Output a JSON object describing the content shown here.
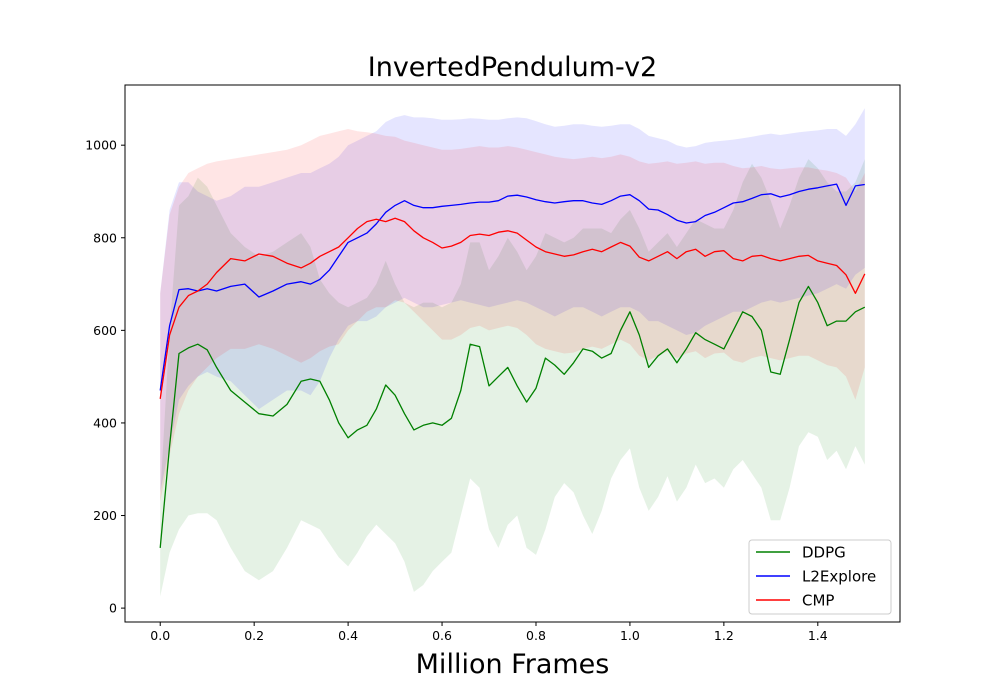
{
  "chart_data": {
    "type": "line",
    "title": "InvertedPendulum-v2",
    "xlabel": "Million Frames",
    "ylabel": "",
    "xlim": [
      -0.075,
      1.575
    ],
    "ylim": [
      -30,
      1130
    ],
    "xticks": [
      0.0,
      0.2,
      0.4,
      0.6,
      0.8,
      1.0,
      1.2,
      1.4
    ],
    "xtick_labels": [
      "0.0",
      "0.2",
      "0.4",
      "0.6",
      "0.8",
      "1.0",
      "1.2",
      "1.4"
    ],
    "yticks": [
      0,
      200,
      400,
      600,
      800,
      1000
    ],
    "ytick_labels": [
      "0",
      "200",
      "400",
      "600",
      "800",
      "1000"
    ],
    "grid": false,
    "legend_position": "bottom-right",
    "series": [
      {
        "name": "DDPG",
        "color": "#008000",
        "x": [
          0.0,
          0.02,
          0.04,
          0.06,
          0.08,
          0.1,
          0.12,
          0.15,
          0.18,
          0.21,
          0.24,
          0.27,
          0.3,
          0.32,
          0.34,
          0.36,
          0.38,
          0.4,
          0.42,
          0.44,
          0.46,
          0.48,
          0.5,
          0.52,
          0.54,
          0.56,
          0.58,
          0.6,
          0.62,
          0.64,
          0.66,
          0.68,
          0.7,
          0.72,
          0.74,
          0.76,
          0.78,
          0.8,
          0.82,
          0.84,
          0.86,
          0.88,
          0.9,
          0.92,
          0.94,
          0.96,
          0.98,
          1.0,
          1.02,
          1.04,
          1.06,
          1.08,
          1.1,
          1.12,
          1.14,
          1.16,
          1.18,
          1.2,
          1.22,
          1.24,
          1.26,
          1.28,
          1.3,
          1.32,
          1.34,
          1.36,
          1.38,
          1.4,
          1.42,
          1.44,
          1.46,
          1.48,
          1.5
        ],
        "y": [
          130,
          350,
          550,
          562,
          570,
          558,
          520,
          470,
          445,
          420,
          415,
          440,
          490,
          495,
          490,
          450,
          400,
          368,
          385,
          395,
          430,
          482,
          460,
          420,
          385,
          395,
          400,
          395,
          410,
          470,
          570,
          565,
          480,
          500,
          520,
          480,
          445,
          475,
          540,
          525,
          505,
          530,
          560,
          555,
          540,
          550,
          600,
          640,
          590,
          520,
          545,
          560,
          530,
          560,
          595,
          580,
          570,
          560,
          600,
          640,
          630,
          600,
          510,
          505,
          580,
          660,
          695,
          660,
          610,
          620,
          620,
          640,
          650
        ],
        "lower": [
          25,
          120,
          170,
          200,
          205,
          205,
          190,
          130,
          80,
          60,
          80,
          130,
          190,
          180,
          170,
          140,
          110,
          90,
          120,
          155,
          180,
          160,
          140,
          100,
          35,
          50,
          80,
          100,
          120,
          200,
          280,
          260,
          170,
          130,
          180,
          200,
          130,
          115,
          170,
          240,
          270,
          250,
          200,
          160,
          210,
          280,
          320,
          345,
          260,
          210,
          240,
          285,
          230,
          260,
          310,
          270,
          280,
          260,
          300,
          320,
          290,
          260,
          190,
          190,
          260,
          350,
          380,
          370,
          320,
          340,
          300,
          350,
          310
        ],
        "upper": [
          240,
          600,
          870,
          890,
          930,
          910,
          870,
          810,
          780,
          760,
          770,
          790,
          810,
          780,
          710,
          680,
          660,
          650,
          660,
          670,
          700,
          750,
          700,
          660,
          650,
          660,
          660,
          650,
          660,
          700,
          790,
          790,
          730,
          760,
          800,
          770,
          730,
          760,
          810,
          800,
          790,
          800,
          820,
          820,
          820,
          810,
          840,
          860,
          820,
          770,
          790,
          810,
          780,
          810,
          840,
          830,
          820,
          820,
          860,
          920,
          960,
          930,
          880,
          820,
          870,
          930,
          970,
          950,
          920,
          900,
          900,
          920,
          970
        ]
      },
      {
        "name": "L2Explore",
        "color": "#0000ff",
        "x": [
          0.0,
          0.02,
          0.04,
          0.06,
          0.08,
          0.1,
          0.12,
          0.15,
          0.18,
          0.21,
          0.24,
          0.27,
          0.3,
          0.32,
          0.34,
          0.36,
          0.38,
          0.4,
          0.42,
          0.44,
          0.46,
          0.48,
          0.5,
          0.52,
          0.54,
          0.56,
          0.58,
          0.6,
          0.62,
          0.64,
          0.66,
          0.68,
          0.7,
          0.72,
          0.74,
          0.76,
          0.78,
          0.8,
          0.82,
          0.84,
          0.86,
          0.88,
          0.9,
          0.92,
          0.94,
          0.96,
          0.98,
          1.0,
          1.02,
          1.04,
          1.06,
          1.08,
          1.1,
          1.12,
          1.14,
          1.16,
          1.18,
          1.2,
          1.22,
          1.24,
          1.26,
          1.28,
          1.3,
          1.32,
          1.34,
          1.36,
          1.38,
          1.4,
          1.42,
          1.44,
          1.46,
          1.48,
          1.5
        ],
        "y": [
          470,
          610,
          688,
          690,
          685,
          690,
          685,
          695,
          700,
          672,
          685,
          700,
          705,
          700,
          710,
          730,
          760,
          790,
          800,
          810,
          830,
          855,
          870,
          880,
          870,
          865,
          865,
          868,
          870,
          872,
          875,
          877,
          877,
          880,
          890,
          892,
          888,
          882,
          878,
          875,
          878,
          880,
          880,
          875,
          872,
          880,
          890,
          893,
          880,
          862,
          860,
          850,
          838,
          832,
          835,
          848,
          855,
          865,
          875,
          878,
          885,
          893,
          895,
          888,
          893,
          900,
          905,
          908,
          912,
          916,
          870,
          912,
          915
        ],
        "lower": [
          250,
          350,
          450,
          480,
          500,
          510,
          500,
          490,
          460,
          430,
          450,
          470,
          470,
          460,
          490,
          540,
          580,
          610,
          620,
          620,
          630,
          650,
          660,
          670,
          660,
          650,
          650,
          655,
          660,
          665,
          660,
          655,
          650,
          655,
          660,
          665,
          660,
          650,
          640,
          630,
          640,
          650,
          650,
          640,
          630,
          640,
          650,
          650,
          640,
          620,
          620,
          610,
          600,
          590,
          595,
          610,
          620,
          630,
          640,
          640,
          650,
          660,
          665,
          660,
          665,
          670,
          675,
          680,
          690,
          700,
          690,
          720,
          735
        ],
        "upper": [
          680,
          860,
          920,
          920,
          900,
          890,
          880,
          890,
          910,
          910,
          920,
          930,
          940,
          940,
          950,
          960,
          975,
          1000,
          1010,
          1020,
          1030,
          1050,
          1060,
          1065,
          1060,
          1060,
          1058,
          1055,
          1055,
          1056,
          1058,
          1057,
          1055,
          1055,
          1058,
          1060,
          1058,
          1052,
          1045,
          1040,
          1042,
          1045,
          1045,
          1042,
          1040,
          1042,
          1045,
          1045,
          1035,
          1020,
          1015,
          1010,
          1000,
          995,
          998,
          1005,
          1008,
          1010,
          1012,
          1015,
          1018,
          1022,
          1025,
          1022,
          1025,
          1028,
          1030,
          1032,
          1035,
          1035,
          1020,
          1045,
          1080
        ]
      },
      {
        "name": "CMP",
        "color": "#ff0000",
        "x": [
          0.0,
          0.02,
          0.04,
          0.06,
          0.08,
          0.1,
          0.12,
          0.15,
          0.18,
          0.21,
          0.24,
          0.27,
          0.3,
          0.32,
          0.34,
          0.36,
          0.38,
          0.4,
          0.42,
          0.44,
          0.46,
          0.48,
          0.5,
          0.52,
          0.54,
          0.56,
          0.58,
          0.6,
          0.62,
          0.64,
          0.66,
          0.68,
          0.7,
          0.72,
          0.74,
          0.76,
          0.78,
          0.8,
          0.82,
          0.84,
          0.86,
          0.88,
          0.9,
          0.92,
          0.94,
          0.96,
          0.98,
          1.0,
          1.02,
          1.04,
          1.06,
          1.08,
          1.1,
          1.12,
          1.14,
          1.16,
          1.18,
          1.2,
          1.22,
          1.24,
          1.26,
          1.28,
          1.3,
          1.32,
          1.34,
          1.36,
          1.38,
          1.4,
          1.42,
          1.44,
          1.46,
          1.48,
          1.5
        ],
        "y": [
          452,
          590,
          650,
          675,
          685,
          700,
          725,
          755,
          750,
          765,
          760,
          745,
          735,
          745,
          760,
          770,
          780,
          800,
          820,
          835,
          840,
          835,
          842,
          835,
          815,
          800,
          790,
          778,
          782,
          790,
          805,
          808,
          805,
          812,
          815,
          810,
          795,
          780,
          770,
          765,
          760,
          763,
          770,
          775,
          770,
          780,
          790,
          782,
          758,
          750,
          760,
          770,
          755,
          770,
          775,
          760,
          770,
          772,
          755,
          750,
          760,
          762,
          755,
          750,
          755,
          760,
          762,
          750,
          745,
          740,
          720,
          680,
          722
        ],
        "lower": [
          230,
          330,
          420,
          470,
          500,
          520,
          540,
          560,
          560,
          570,
          560,
          545,
          530,
          540,
          555,
          565,
          570,
          600,
          620,
          640,
          650,
          650,
          665,
          660,
          640,
          620,
          600,
          580,
          580,
          590,
          605,
          610,
          600,
          605,
          610,
          605,
          590,
          570,
          560,
          555,
          550,
          552,
          560,
          565,
          560,
          570,
          580,
          570,
          545,
          535,
          545,
          555,
          540,
          550,
          555,
          540,
          550,
          552,
          535,
          530,
          540,
          545,
          540,
          535,
          540,
          545,
          545,
          535,
          525,
          520,
          500,
          450,
          520
        ],
        "upper": [
          680,
          850,
          910,
          940,
          950,
          960,
          965,
          970,
          975,
          980,
          985,
          990,
          1000,
          1010,
          1020,
          1025,
          1030,
          1035,
          1030,
          1028,
          1025,
          1020,
          1018,
          1010,
          1005,
          1000,
          995,
          990,
          990,
          992,
          995,
          998,
          995,
          995,
          998,
          995,
          990,
          985,
          980,
          975,
          972,
          970,
          972,
          975,
          972,
          975,
          980,
          975,
          965,
          960,
          962,
          965,
          960,
          962,
          965,
          960,
          962,
          962,
          955,
          950,
          952,
          955,
          950,
          948,
          950,
          952,
          952,
          948,
          945,
          940,
          930,
          900,
          940
        ]
      }
    ]
  }
}
